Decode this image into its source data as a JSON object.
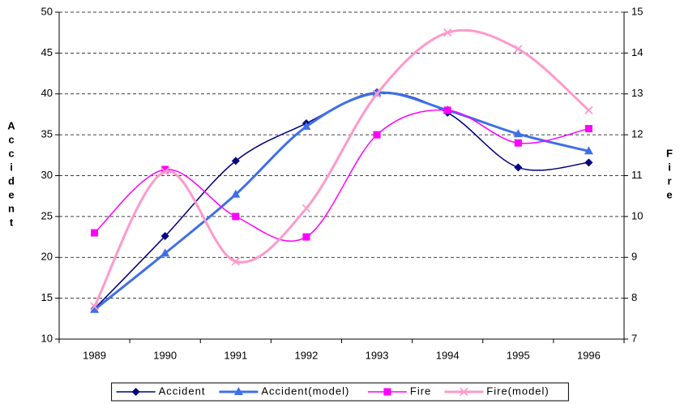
{
  "chart_data": {
    "type": "line",
    "categories": [
      "1989",
      "1990",
      "1991",
      "1992",
      "1993",
      "1994",
      "1995",
      "1996"
    ],
    "y_label": "Accident",
    "y2_label": "Fire",
    "ylim": [
      10,
      50
    ],
    "yticks": [
      10,
      15,
      20,
      25,
      30,
      35,
      40,
      45,
      50
    ],
    "y2lim": [
      7,
      15
    ],
    "y2ticks": [
      7,
      8,
      9,
      10,
      11,
      12,
      13,
      14,
      15
    ],
    "grid": true,
    "smooth": true,
    "legend": "bottom",
    "series": [
      {
        "name": "Accident",
        "color": "#000080",
        "marker": "diamond",
        "values": [
          13.7,
          22.6,
          31.8,
          36.4,
          40.2,
          37.7,
          31.0,
          31.6
        ]
      },
      {
        "name": "Accident(model)",
        "color": "#3f6fe8",
        "marker": "triangle",
        "values": [
          13.6,
          20.5,
          27.7,
          36.0,
          40.1,
          38.0,
          35.1,
          33.0
        ]
      },
      {
        "name": "Fire",
        "color": "#ff00ff",
        "marker": "square",
        "axis": "y2",
        "values": [
          9.6,
          11.15,
          10.0,
          9.5,
          12.0,
          12.6,
          11.8,
          12.15
        ]
      },
      {
        "name": "Fire(model)",
        "color": "#ff99cc",
        "marker": "x",
        "axis": "y2",
        "values": [
          7.8,
          11.1,
          8.9,
          10.2,
          13.0,
          14.5,
          14.1,
          12.6
        ]
      }
    ]
  }
}
